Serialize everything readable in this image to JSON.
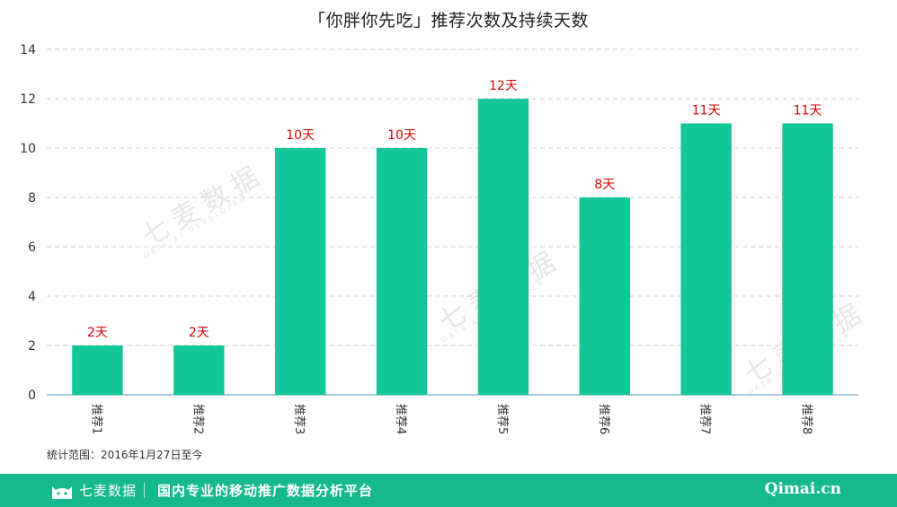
{
  "chart_data": {
    "type": "bar",
    "title": "「你胖你先吃」推荐次数及持续天数",
    "categories": [
      "推荐1",
      "推荐2",
      "推荐3",
      "推荐4",
      "推荐5",
      "推荐6",
      "推荐7",
      "推荐8"
    ],
    "values": [
      2,
      2,
      10,
      10,
      12,
      8,
      11,
      11
    ],
    "data_labels": [
      "2天",
      "2天",
      "10天",
      "10天",
      "12天",
      "8天",
      "11天",
      "11天"
    ],
    "ylim": [
      0,
      14
    ],
    "yticks": [
      0,
      2,
      4,
      6,
      8,
      10,
      12,
      14
    ],
    "grid": true,
    "bar_color": "#14c79a",
    "label_color": "#e00000"
  },
  "footnote": "统计范围：2016年1月27日至今",
  "watermark": {
    "brand": "七麦数据",
    "sub": "DATA·AI·DEVELOPER"
  },
  "footer": {
    "brand": "七麦数据",
    "slogan": "国内专业的移动推广数据分析平台",
    "site": "Qimai.cn",
    "bg_color": "#16b98e"
  }
}
